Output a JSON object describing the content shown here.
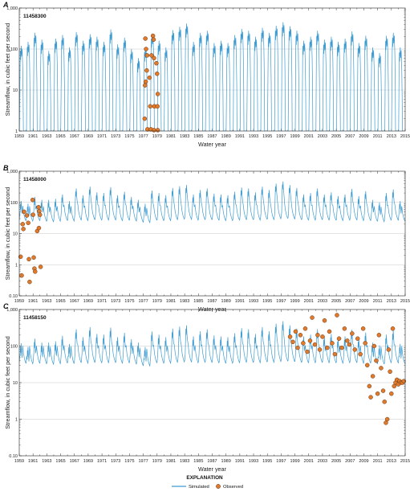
{
  "colors": {
    "simulated": "#3d9bd1",
    "observed_fill": "#e07b2d",
    "observed_stroke": "#5a2a0a",
    "grid": "#c8c8c8",
    "axis": "#222222"
  },
  "chart_data": [
    {
      "panel": "A",
      "station": "11458300",
      "type": "line",
      "xlabel": "Water year",
      "ylabel": "Streamflow, in cubic feet per second",
      "xlim": [
        1959,
        2015
      ],
      "ylim": [
        1,
        1000
      ],
      "yscale": "log",
      "ytick_labels": [
        "1",
        "10",
        "100",
        "1,000"
      ],
      "ytick_values": [
        1,
        10,
        100,
        1000
      ],
      "xtick_labels": [
        "1959",
        "1961",
        "1963",
        "1965",
        "1967",
        "1969",
        "1971",
        "1973",
        "1975",
        "1977",
        "1979",
        "1981",
        "1983",
        "1985",
        "1987",
        "1989",
        "1991",
        "1993",
        "1995",
        "1997",
        "1999",
        "2001",
        "2003",
        "2005",
        "2007",
        "2009",
        "2011",
        "2013",
        "2015"
      ],
      "grid": true,
      "simulated": {
        "name": "Simulated",
        "pattern": "intermittent",
        "annual_peak": [
          120,
          150,
          250,
          170,
          90,
          180,
          220,
          110,
          260,
          160,
          230,
          200,
          150,
          300,
          130,
          190,
          100,
          60,
          110,
          240,
          160,
          110,
          290,
          350,
          420,
          150,
          250,
          280,
          140,
          160,
          140,
          220,
          310,
          280,
          200,
          330,
          250,
          370,
          450,
          360,
          280,
          160,
          200,
          280,
          170,
          200,
          150,
          180,
          270,
          140,
          210,
          110,
          80,
          210,
          250,
          110
        ],
        "annual_base": [
          1,
          1,
          1,
          1,
          1,
          1,
          1,
          1,
          1,
          1,
          1,
          1,
          1,
          1,
          1,
          1,
          1,
          1,
          1,
          1,
          1,
          1,
          1,
          1,
          1,
          1,
          1,
          1,
          1,
          1,
          1,
          1,
          1,
          1,
          1,
          1,
          1,
          1,
          1,
          1,
          1,
          1,
          1,
          1,
          1,
          1,
          1,
          1,
          1,
          1,
          1,
          1,
          1,
          1,
          1,
          1
        ]
      },
      "observed": {
        "name": "Observed",
        "points": [
          {
            "x": 1977.3,
            "y": 180
          },
          {
            "x": 1977.4,
            "y": 100
          },
          {
            "x": 1977.55,
            "y": 70
          },
          {
            "x": 1977.5,
            "y": 30
          },
          {
            "x": 1977.35,
            "y": 16
          },
          {
            "x": 1977.25,
            "y": 13
          },
          {
            "x": 1977.2,
            "y": 2
          },
          {
            "x": 1977.6,
            "y": 1.1
          },
          {
            "x": 1977.9,
            "y": 20
          },
          {
            "x": 1978.0,
            "y": 4
          },
          {
            "x": 1978.1,
            "y": 1.1
          },
          {
            "x": 1978.2,
            "y": 70
          },
          {
            "x": 1978.4,
            "y": 210
          },
          {
            "x": 1978.5,
            "y": 170
          },
          {
            "x": 1978.55,
            "y": 60
          },
          {
            "x": 1978.6,
            "y": 4
          },
          {
            "x": 1978.55,
            "y": 1.05
          },
          {
            "x": 1978.9,
            "y": 45
          },
          {
            "x": 1979.0,
            "y": 25
          },
          {
            "x": 1979.1,
            "y": 8
          },
          {
            "x": 1979.05,
            "y": 4
          },
          {
            "x": 1979.1,
            "y": 1.05
          }
        ]
      }
    },
    {
      "panel": "B",
      "station": "11458000",
      "type": "line",
      "xlabel": "Water year",
      "ylabel": "Streamflow, in cubic feet per second",
      "xlim": [
        1959,
        2015
      ],
      "ylim": [
        0.1,
        1000
      ],
      "yscale": "log",
      "ytick_labels": [
        "0.10",
        "1",
        "10",
        "100",
        "1,000"
      ],
      "ytick_values": [
        0.1,
        1,
        10,
        100,
        1000
      ],
      "xtick_labels": [
        "1959",
        "1961",
        "1963",
        "1965",
        "1967",
        "1969",
        "1971",
        "1973",
        "1975",
        "1977",
        "1979",
        "1981",
        "1983",
        "1985",
        "1987",
        "1989",
        "1991",
        "1993",
        "1995",
        "1997",
        "1999",
        "2001",
        "2003",
        "2005",
        "2007",
        "2009",
        "2011",
        "2013",
        "2015"
      ],
      "grid": true,
      "simulated": {
        "name": "Simulated",
        "pattern": "perennial",
        "annual_peak": [
          110,
          90,
          150,
          120,
          120,
          130,
          180,
          110,
          280,
          170,
          320,
          210,
          200,
          310,
          170,
          220,
          150,
          120,
          90,
          240,
          200,
          170,
          290,
          330,
          360,
          180,
          250,
          280,
          190,
          180,
          170,
          220,
          300,
          280,
          210,
          320,
          250,
          400,
          470,
          360,
          290,
          180,
          200,
          280,
          180,
          210,
          160,
          180,
          270,
          160,
          230,
          120,
          100,
          200,
          260,
          110
        ],
        "annual_base": [
          26,
          25,
          26,
          25,
          24,
          25,
          27,
          25,
          28,
          26,
          28,
          27,
          27,
          28,
          26,
          27,
          26,
          24,
          22,
          27,
          26,
          26,
          28,
          29,
          30,
          27,
          28,
          28,
          27,
          26,
          26,
          27,
          28,
          28,
          27,
          29,
          28,
          30,
          31,
          30,
          28,
          27,
          27,
          28,
          27,
          27,
          26,
          27,
          28,
          26,
          27,
          25,
          24,
          27,
          28,
          25
        ]
      },
      "observed": {
        "name": "Observed",
        "points": [
          {
            "x": 1959.2,
            "y": 1.8
          },
          {
            "x": 1959.35,
            "y": 0.45
          },
          {
            "x": 1959.5,
            "y": 20
          },
          {
            "x": 1959.6,
            "y": 14
          },
          {
            "x": 1959.7,
            "y": 50
          },
          {
            "x": 1960.1,
            "y": 38
          },
          {
            "x": 1960.3,
            "y": 22
          },
          {
            "x": 1960.4,
            "y": 1.5
          },
          {
            "x": 1960.5,
            "y": 0.28
          },
          {
            "x": 1960.95,
            "y": 120
          },
          {
            "x": 1961.0,
            "y": 40
          },
          {
            "x": 1961.1,
            "y": 1.7
          },
          {
            "x": 1961.2,
            "y": 0.75
          },
          {
            "x": 1961.3,
            "y": 0.6
          },
          {
            "x": 1961.6,
            "y": 12
          },
          {
            "x": 1961.8,
            "y": 70
          },
          {
            "x": 1961.9,
            "y": 52
          },
          {
            "x": 1962.0,
            "y": 40
          },
          {
            "x": 1961.85,
            "y": 15
          },
          {
            "x": 1962.1,
            "y": 0.85
          }
        ]
      }
    },
    {
      "panel": "C",
      "station": "11458150",
      "type": "line",
      "xlabel": "Water year",
      "ylabel": "Streamflow, in cubic feet per second",
      "xlim": [
        1959,
        2015
      ],
      "ylim": [
        0.1,
        1000
      ],
      "yscale": "log",
      "ytick_labels": [
        "0.10",
        "1",
        "10",
        "100",
        "1,000"
      ],
      "ytick_values": [
        0.1,
        1,
        10,
        100,
        1000
      ],
      "xtick_labels": [
        "1959",
        "1961",
        "1963",
        "1965",
        "1967",
        "1969",
        "1971",
        "1973",
        "1975",
        "1977",
        "1979",
        "1981",
        "1983",
        "1985",
        "1987",
        "1989",
        "1991",
        "1993",
        "1995",
        "1997",
        "1999",
        "2001",
        "2003",
        "2005",
        "2007",
        "2009",
        "2011",
        "2013",
        "2015"
      ],
      "grid": true,
      "simulated": {
        "name": "Simulated",
        "pattern": "perennial",
        "annual_peak": [
          120,
          95,
          160,
          125,
          125,
          135,
          190,
          115,
          290,
          175,
          330,
          215,
          205,
          320,
          175,
          230,
          155,
          125,
          95,
          250,
          205,
          175,
          300,
          340,
          370,
          185,
          255,
          290,
          195,
          185,
          175,
          225,
          310,
          290,
          215,
          330,
          255,
          410,
          480,
          370,
          300,
          185,
          205,
          290,
          185,
          215,
          165,
          185,
          280,
          165,
          235,
          125,
          105,
          205,
          270,
          115
        ],
        "annual_base": [
          34,
          33,
          34,
          33,
          32,
          33,
          35,
          33,
          36,
          34,
          36,
          35,
          35,
          36,
          34,
          35,
          34,
          30,
          28,
          35,
          34,
          34,
          36,
          37,
          38,
          35,
          36,
          36,
          35,
          34,
          34,
          35,
          36,
          36,
          35,
          37,
          36,
          38,
          39,
          38,
          36,
          35,
          35,
          36,
          35,
          35,
          34,
          35,
          36,
          34,
          35,
          33,
          32,
          35,
          36,
          33
        ]
      },
      "observed": {
        "name": "Observed",
        "points": [
          {
            "x": 1998.3,
            "y": 180
          },
          {
            "x": 1998.7,
            "y": 130
          },
          {
            "x": 1999.1,
            "y": 250
          },
          {
            "x": 1999.4,
            "y": 90
          },
          {
            "x": 1999.8,
            "y": 200
          },
          {
            "x": 2000.2,
            "y": 120
          },
          {
            "x": 2000.5,
            "y": 300
          },
          {
            "x": 2000.8,
            "y": 70
          },
          {
            "x": 2001.2,
            "y": 140
          },
          {
            "x": 2001.5,
            "y": 600
          },
          {
            "x": 2001.9,
            "y": 110
          },
          {
            "x": 2002.3,
            "y": 200
          },
          {
            "x": 2002.6,
            "y": 80
          },
          {
            "x": 2003.0,
            "y": 180
          },
          {
            "x": 2003.3,
            "y": 500
          },
          {
            "x": 2003.7,
            "y": 90
          },
          {
            "x": 2004.0,
            "y": 250
          },
          {
            "x": 2004.4,
            "y": 120
          },
          {
            "x": 2004.8,
            "y": 60
          },
          {
            "x": 2005.1,
            "y": 700
          },
          {
            "x": 2005.4,
            "y": 160
          },
          {
            "x": 2005.8,
            "y": 90
          },
          {
            "x": 2006.2,
            "y": 300
          },
          {
            "x": 2006.6,
            "y": 140
          },
          {
            "x": 2006.9,
            "y": 110
          },
          {
            "x": 2007.3,
            "y": 220
          },
          {
            "x": 2007.7,
            "y": 80
          },
          {
            "x": 2008.1,
            "y": 160
          },
          {
            "x": 2008.5,
            "y": 60
          },
          {
            "x": 2008.9,
            "y": 300
          },
          {
            "x": 2009.2,
            "y": 120
          },
          {
            "x": 2009.5,
            "y": 30
          },
          {
            "x": 2009.8,
            "y": 8
          },
          {
            "x": 2010.0,
            "y": 4
          },
          {
            "x": 2010.3,
            "y": 15
          },
          {
            "x": 2010.5,
            "y": 100
          },
          {
            "x": 2010.8,
            "y": 40
          },
          {
            "x": 2011.0,
            "y": 5
          },
          {
            "x": 2011.2,
            "y": 200
          },
          {
            "x": 2011.5,
            "y": 25
          },
          {
            "x": 2011.8,
            "y": 6
          },
          {
            "x": 2012.0,
            "y": 3
          },
          {
            "x": 2012.2,
            "y": 0.8
          },
          {
            "x": 2012.4,
            "y": 1
          },
          {
            "x": 2012.6,
            "y": 80
          },
          {
            "x": 2012.8,
            "y": 20
          },
          {
            "x": 2013.0,
            "y": 5
          },
          {
            "x": 2013.2,
            "y": 300
          },
          {
            "x": 2013.4,
            "y": 8
          },
          {
            "x": 2013.6,
            "y": 10
          },
          {
            "x": 2013.8,
            "y": 12
          },
          {
            "x": 2014.0,
            "y": 9
          },
          {
            "x": 2014.2,
            "y": 11
          },
          {
            "x": 2014.4,
            "y": 10
          },
          {
            "x": 2014.6,
            "y": 10
          },
          {
            "x": 2014.8,
            "y": 11
          }
        ]
      }
    }
  ],
  "legend": {
    "title": "EXPLANATION",
    "simulated_label": "Simulated",
    "observed_label": "Observed"
  }
}
